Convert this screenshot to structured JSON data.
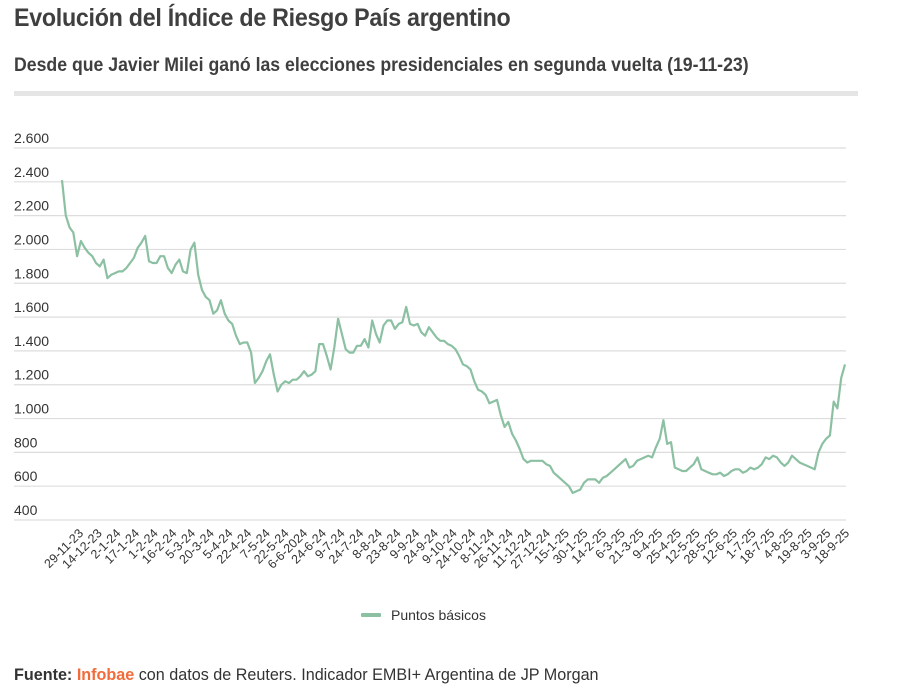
{
  "header": {
    "title": "Evolución del Índice de Riesgo País argentino",
    "subtitle": "Desde que Javier Milei ganó las elecciones presidenciales en segunda vuelta (19-11-23)"
  },
  "legend": {
    "label": "Puntos básicos",
    "color": "#8cc0a2"
  },
  "footer": {
    "prefix": "Fuente:",
    "brand": "Infobae",
    "rest": " con datos de Reuters. Indicador EMBI+ Argentina de JP Morgan",
    "brand_color": "#f26b3a"
  },
  "chart_data": {
    "type": "line",
    "title": "Evolución del Índice de Riesgo País argentino",
    "subtitle": "Desde que Javier Milei ganó las elecciones presidenciales en segunda vuelta (19-11-23)",
    "xlabel": "",
    "ylabel": "",
    "ylim": [
      400,
      2600
    ],
    "yticks": [
      400,
      600,
      800,
      1000,
      1200,
      1400,
      1600,
      1800,
      2000,
      2200,
      2400,
      2600
    ],
    "ytick_labels": [
      "400",
      "600",
      "800",
      "1.000",
      "1.200",
      "1.400",
      "1.600",
      "1.800",
      "2.000",
      "2.200",
      "2.400",
      "2.600"
    ],
    "grid": true,
    "legend_position": "bottom-center",
    "xtick_labels": [
      "29-11-23",
      "14-12-23",
      "2-1-24",
      "17-1-24",
      "1-2-24",
      "16-2-24",
      "5-3-24",
      "20-3-24",
      "5-4-24",
      "22-4-24",
      "7-5-24",
      "22-5-24",
      "6-6-2024",
      "24-6-24",
      "9-7-24",
      "24-7-24",
      "8-8-24",
      "23-8-24",
      "9-9-24",
      "24-9-24",
      "9-10-24",
      "24-10-24",
      "8-11-24",
      "26-11-24",
      "11-12-24",
      "27-12-24",
      "15-1-25",
      "30-1-25",
      "14-2-25",
      "6-3-25",
      "21-3-25",
      "9-4-25",
      "25-4-25",
      "12-5-25",
      "28-5-25",
      "12-6-25",
      "1-7-25",
      "18-7-25",
      "4-8-25",
      "19-8-25",
      "3-9-25",
      "18-9-25"
    ],
    "series": [
      {
        "name": "Puntos básicos",
        "color": "#8cc0a2",
        "values": [
          2410,
          2200,
          2130,
          2100,
          1960,
          2050,
          2010,
          1980,
          1960,
          1920,
          1900,
          1940,
          1830,
          1850,
          1860,
          1870,
          1870,
          1890,
          1920,
          1950,
          2010,
          2040,
          2080,
          1930,
          1920,
          1920,
          1960,
          1960,
          1890,
          1860,
          1910,
          1940,
          1870,
          1860,
          2000,
          2040,
          1850,
          1760,
          1720,
          1700,
          1620,
          1640,
          1700,
          1620,
          1580,
          1560,
          1490,
          1440,
          1450,
          1450,
          1390,
          1210,
          1240,
          1280,
          1340,
          1380,
          1260,
          1160,
          1200,
          1220,
          1210,
          1230,
          1230,
          1250,
          1280,
          1250,
          1260,
          1280,
          1440,
          1440,
          1370,
          1290,
          1420,
          1590,
          1500,
          1410,
          1390,
          1390,
          1430,
          1430,
          1470,
          1420,
          1580,
          1500,
          1450,
          1550,
          1580,
          1580,
          1530,
          1560,
          1570,
          1660,
          1560,
          1550,
          1560,
          1510,
          1490,
          1540,
          1510,
          1480,
          1460,
          1460,
          1440,
          1430,
          1410,
          1370,
          1320,
          1310,
          1290,
          1220,
          1170,
          1160,
          1140,
          1090,
          1100,
          1110,
          1020,
          950,
          980,
          910,
          870,
          820,
          760,
          740,
          750,
          750,
          750,
          750,
          730,
          720,
          680,
          660,
          640,
          620,
          600,
          560,
          570,
          580,
          620,
          640,
          640,
          640,
          620,
          650,
          660,
          680,
          700,
          720,
          740,
          760,
          710,
          720,
          750,
          760,
          770,
          780,
          770,
          830,
          880,
          990,
          850,
          860,
          710,
          700,
          690,
          690,
          710,
          730,
          770,
          700,
          690,
          680,
          670,
          670,
          680,
          660,
          670,
          690,
          700,
          700,
          680,
          690,
          710,
          700,
          710,
          730,
          770,
          760,
          780,
          770,
          740,
          720,
          740,
          780,
          760,
          740,
          730,
          720,
          710,
          700,
          800,
          850,
          880,
          900,
          1100,
          1060,
          1240,
          1320
        ]
      }
    ]
  }
}
